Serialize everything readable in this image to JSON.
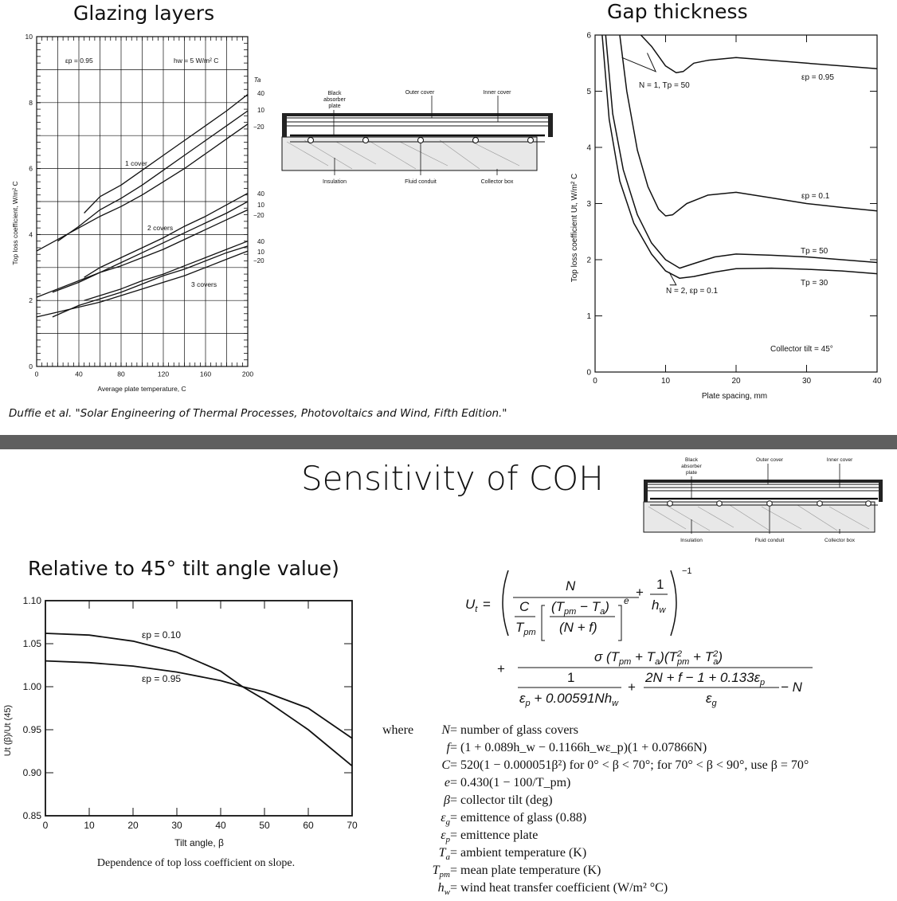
{
  "titles": {
    "glazing": "Glazing layers",
    "gap": "Gap thickness",
    "section": "Sensitivity of COH",
    "relative": "Relative to 45° tilt angle value)"
  },
  "citation": "Duffie et al. \"Solar Engineering of Thermal Processes, Photovoltaics and Wind, Fifth Edition.\"",
  "diagram_labels": {
    "black_absorber": [
      "Black",
      "absorber",
      "plate"
    ],
    "outer_cover": "Outer cover",
    "inner_cover": "Inner cover",
    "insulation": "Insulation",
    "fluid_conduit": "Fluid conduit",
    "collector_box": "Collector box"
  },
  "chart_data": [
    {
      "id": "glazing",
      "type": "line",
      "xlabel": "Average plate temperature, C",
      "ylabel": "Top loss coefficient, W/m² C",
      "xlim": [
        0,
        200
      ],
      "ylim": [
        0,
        10
      ],
      "xticks": [
        0,
        40,
        80,
        120,
        160,
        200
      ],
      "yticks": [
        0,
        2,
        4,
        6,
        8,
        10
      ],
      "annotations": {
        "ep": "εp = 0.95",
        "hw": "hw = 5 W/m² C",
        "ta": "Ta"
      },
      "group_labels": [
        "1 cover",
        "2 covers",
        "3 covers"
      ],
      "ta_labels": [
        "40",
        "10",
        "−20"
      ],
      "series": [
        {
          "group": "1 cover",
          "ta": "40",
          "x": [
            45,
            60,
            80,
            100,
            120,
            140,
            160,
            180,
            200
          ],
          "y": [
            4.65,
            5.15,
            5.5,
            5.95,
            6.4,
            6.85,
            7.3,
            7.75,
            8.25
          ]
        },
        {
          "group": "1 cover",
          "ta": "10",
          "x": [
            20,
            40,
            60,
            80,
            100,
            120,
            140,
            160,
            180,
            200
          ],
          "y": [
            3.8,
            4.25,
            4.75,
            5.1,
            5.5,
            5.95,
            6.4,
            6.85,
            7.3,
            7.75
          ]
        },
        {
          "group": "1 cover",
          "ta": "−20",
          "x": [
            0,
            20,
            40,
            60,
            80,
            100,
            120,
            140,
            160,
            180,
            200
          ],
          "y": [
            3.5,
            3.85,
            4.2,
            4.55,
            4.85,
            5.2,
            5.6,
            6.0,
            6.45,
            6.9,
            7.35
          ]
        },
        {
          "group": "2 covers",
          "ta": "40",
          "x": [
            45,
            60,
            80,
            100,
            120,
            140,
            160,
            180,
            200
          ],
          "y": [
            2.7,
            3.0,
            3.3,
            3.6,
            3.9,
            4.25,
            4.55,
            4.9,
            5.25
          ]
        },
        {
          "group": "2 covers",
          "ta": "10",
          "x": [
            15,
            40,
            60,
            80,
            100,
            120,
            140,
            160,
            180,
            200
          ],
          "y": [
            2.25,
            2.55,
            2.85,
            3.15,
            3.45,
            3.75,
            4.05,
            4.35,
            4.65,
            5.0
          ]
        },
        {
          "group": "2 covers",
          "ta": "−20",
          "x": [
            0,
            20,
            40,
            60,
            80,
            100,
            120,
            140,
            160,
            180,
            200
          ],
          "y": [
            2.1,
            2.35,
            2.6,
            2.85,
            3.05,
            3.3,
            3.55,
            3.85,
            4.15,
            4.45,
            4.75
          ]
        },
        {
          "group": "3 covers",
          "ta": "40",
          "x": [
            45,
            60,
            80,
            100,
            120,
            140,
            160,
            180,
            200
          ],
          "y": [
            2.0,
            2.15,
            2.35,
            2.6,
            2.8,
            3.05,
            3.3,
            3.55,
            3.8
          ]
        },
        {
          "group": "3 covers",
          "ta": "10",
          "x": [
            15,
            40,
            60,
            80,
            100,
            120,
            140,
            160,
            180,
            200
          ],
          "y": [
            1.5,
            1.85,
            2.05,
            2.25,
            2.5,
            2.75,
            2.95,
            3.2,
            3.45,
            3.65
          ]
        },
        {
          "group": "3 covers",
          "ta": "−20",
          "x": [
            0,
            20,
            40,
            60,
            80,
            100,
            120,
            140,
            160,
            180,
            200
          ],
          "y": [
            1.5,
            1.65,
            1.8,
            1.95,
            2.15,
            2.35,
            2.55,
            2.75,
            3.0,
            3.25,
            3.5
          ]
        }
      ]
    },
    {
      "id": "gap",
      "type": "line",
      "xlabel": "Plate spacing, mm",
      "ylabel": "Top loss coefficient Ut, W/m² C",
      "xlim": [
        0,
        40
      ],
      "ylim": [
        0,
        6
      ],
      "xticks": [
        0,
        10,
        20,
        30,
        40
      ],
      "yticks": [
        0,
        1,
        2,
        3,
        4,
        5,
        6
      ],
      "annotations": {
        "n1": "N = 1, Tp = 50",
        "n2": "N = 2, εp = 0.1",
        "ep095": "εp = 0.95",
        "ep01": "εp = 0.1",
        "tp50": "Tp = 50",
        "tp30": "Tp = 30",
        "tilt": "Collector tilt = 45°"
      },
      "series": [
        {
          "name": "εp = 0.95",
          "x": [
            6.5,
            8,
            10,
            11.5,
            12.5,
            14,
            16,
            20,
            25,
            30,
            35,
            40
          ],
          "y": [
            6.0,
            5.8,
            5.45,
            5.33,
            5.35,
            5.5,
            5.55,
            5.6,
            5.55,
            5.5,
            5.45,
            5.4
          ]
        },
        {
          "name": "εp = 0.1",
          "x": [
            3.5,
            4.5,
            6,
            7.5,
            9,
            10,
            11,
            13,
            16,
            20,
            25,
            30,
            35,
            40
          ],
          "y": [
            6.0,
            5.0,
            3.95,
            3.3,
            2.9,
            2.78,
            2.8,
            3.0,
            3.15,
            3.2,
            3.1,
            3.0,
            2.93,
            2.87
          ]
        },
        {
          "name": "Tp = 50",
          "x": [
            1.5,
            2.5,
            4,
            6,
            8,
            10,
            12,
            14,
            17,
            20,
            25,
            30,
            35,
            40
          ],
          "y": [
            6.0,
            4.6,
            3.6,
            2.8,
            2.3,
            2.0,
            1.85,
            1.93,
            2.05,
            2.1,
            2.08,
            2.05,
            2.0,
            1.95
          ]
        },
        {
          "name": "Tp = 30",
          "x": [
            1.0,
            2,
            3.5,
            5.5,
            8,
            10,
            12,
            14,
            17,
            20,
            25,
            30,
            35,
            40
          ],
          "y": [
            6.0,
            4.5,
            3.4,
            2.65,
            2.1,
            1.8,
            1.67,
            1.7,
            1.78,
            1.84,
            1.85,
            1.83,
            1.8,
            1.75
          ]
        }
      ]
    },
    {
      "id": "tilt",
      "type": "line",
      "xlabel": "Tilt angle, β",
      "ylabel": "Ut (β)/Ut (45)",
      "caption": "Dependence of top loss coefficient on slope.",
      "xlim": [
        0,
        70
      ],
      "ylim": [
        0.85,
        1.1
      ],
      "xticks": [
        0,
        10,
        20,
        30,
        40,
        50,
        60,
        70
      ],
      "yticks": [
        0.85,
        0.9,
        0.95,
        1.0,
        1.05,
        1.1
      ],
      "ytick_labels": [
        "0.85",
        "0.90",
        "0.95",
        "1.00",
        "1.05",
        "1.10"
      ],
      "annotations": {
        "ep010": "εp = 0.10",
        "ep095": "εp = 0.95"
      },
      "series": [
        {
          "name": "εp = 0.10",
          "x": [
            0,
            10,
            20,
            30,
            40,
            45,
            50,
            60,
            70
          ],
          "y": [
            1.062,
            1.06,
            1.053,
            1.04,
            1.018,
            1.0,
            0.985,
            0.95,
            0.908
          ]
        },
        {
          "name": "εp = 0.95",
          "x": [
            0,
            10,
            20,
            30,
            40,
            45,
            50,
            60,
            70
          ],
          "y": [
            1.03,
            1.028,
            1.024,
            1.017,
            1.007,
            1.0,
            0.994,
            0.975,
            0.94
          ]
        }
      ]
    }
  ],
  "equation": {
    "ut": "U",
    "ut_sub": "t",
    "eq_sign": "=",
    "N": "N",
    "C": "C",
    "Tpm": "T",
    "pm": "pm",
    "paren_num": "(T",
    "minus_Ta": " − T",
    "a_sub": "a",
    "close_paren": ")",
    "nf": "(N + f)",
    "e_exp": "e",
    "plus": "+",
    "one": "1",
    "hw": "h",
    "w_sub": "w",
    "neg1": "−1",
    "sigma_num": "σ (T",
    "sigma_rest1": " + T",
    "sigma_rest2": ")(T",
    "sigma_rest3": " + T",
    "sigma_rest4": ")",
    "sq": "2",
    "den1_num": "1",
    "den1_den": "ε",
    "den1_den_rest": " + 0.00591Nh",
    "den2_num": "2N + f − 1 + 0.133ε",
    "den2_den": "ε",
    "g_sub": "g",
    "p_sub": "p",
    "minus_N": " − N"
  },
  "definitions": {
    "where": "where",
    "items": [
      {
        "sym": "N",
        "sub": "",
        "text": "= number of glass covers"
      },
      {
        "sym": "f",
        "sub": "",
        "text": "= (1 + 0.089h_w − 0.1166h_wε_p)(1 + 0.07866N)"
      },
      {
        "sym": "C",
        "sub": "",
        "text": "= 520(1 − 0.000051β²)  for 0° < β < 70°;  for 70° < β < 90°,  use β = 70°"
      },
      {
        "sym": "e",
        "sub": "",
        "text": "= 0.430(1 − 100/T_pm)"
      },
      {
        "sym": "β",
        "sub": "",
        "text": "= collector tilt (deg)"
      },
      {
        "sym": "ε",
        "sub": "g",
        "text": "= emittence of glass (0.88)"
      },
      {
        "sym": "ε",
        "sub": "p",
        "text": "= emittence plate"
      },
      {
        "sym": "T",
        "sub": "a",
        "text": "= ambient temperature (K)"
      },
      {
        "sym": "T",
        "sub": "pm",
        "text": "= mean plate temperature (K)"
      },
      {
        "sym": "h",
        "sub": "w",
        "text": "= wind heat transfer coefficient (W/m² °C)"
      }
    ]
  }
}
